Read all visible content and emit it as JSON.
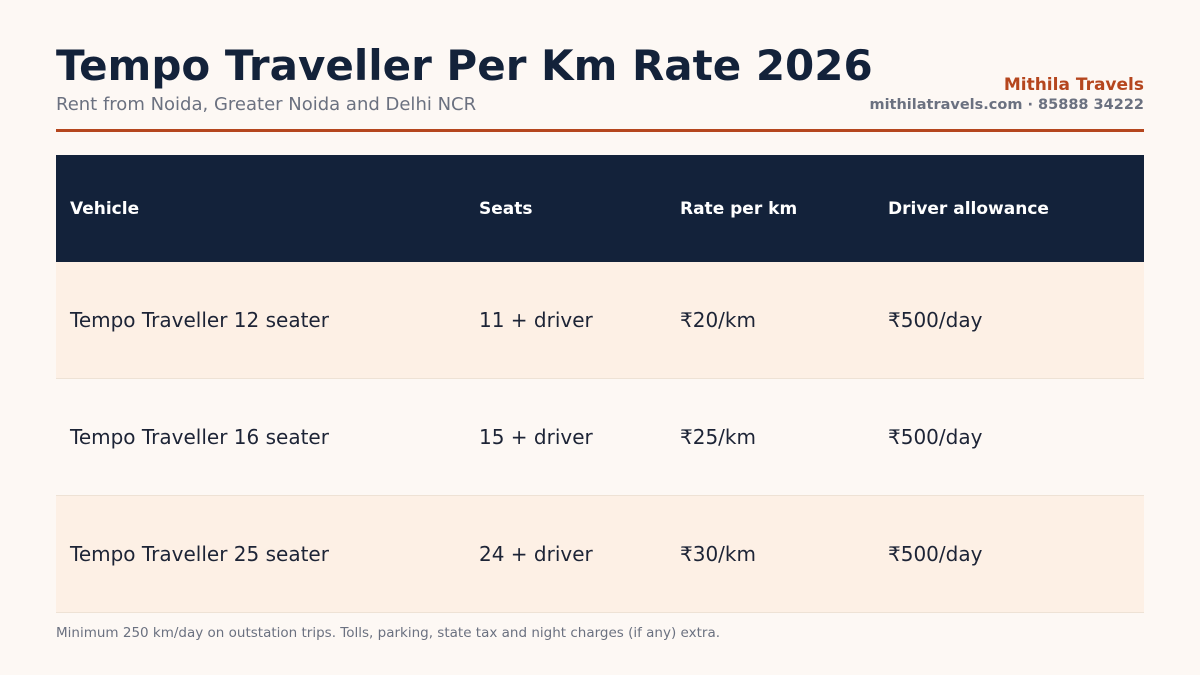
{
  "header": {
    "title": "Tempo Traveller Per Km Rate 2026",
    "subtitle": "Rent from Noida, Greater Noida and Delhi NCR",
    "brand": "Mithila Travels",
    "contact": "mithilatravels.com · 85888 34222"
  },
  "colors": {
    "background": "#fdf8f4",
    "header_bg": "#13223a",
    "accent": "#b5461e",
    "row_alt": "#fdf0e5"
  },
  "chart_data": {
    "type": "table",
    "columns": [
      "Vehicle",
      "Seats",
      "Rate per km",
      "Driver allowance"
    ],
    "rows": [
      [
        "Tempo Traveller 12 seater",
        "11 + driver",
        "₹20/km",
        "₹500/day"
      ],
      [
        "Tempo Traveller 16 seater",
        "15 + driver",
        "₹25/km",
        "₹500/day"
      ],
      [
        "Tempo Traveller 25 seater",
        "24 + driver",
        "₹30/km",
        "₹500/day"
      ]
    ]
  },
  "footnote": "Minimum 250 km/day on outstation trips. Tolls, parking, state tax and night charges (if any) extra."
}
